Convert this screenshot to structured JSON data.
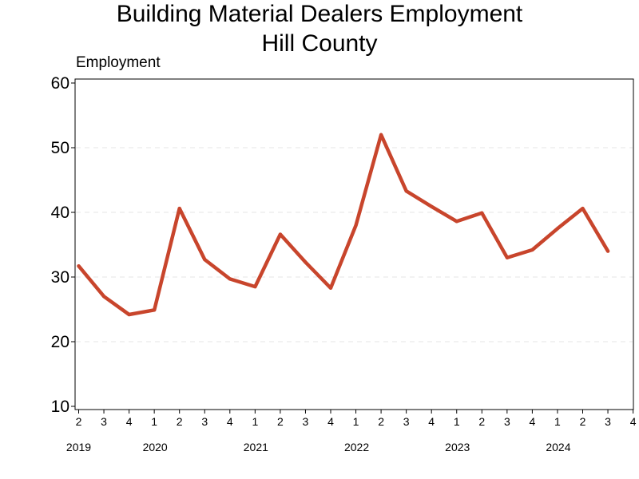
{
  "chart_data": {
    "type": "line",
    "title": "Building Material Dealers Employment",
    "subtitle": "Hill County",
    "ylabel": "Employment",
    "ylim": [
      10,
      60
    ],
    "yticks": [
      10,
      20,
      30,
      40,
      50,
      60
    ],
    "quarter_ticks": [
      "2",
      "3",
      "4",
      "1",
      "2",
      "3",
      "4",
      "1",
      "2",
      "3",
      "4",
      "1",
      "2",
      "3",
      "4",
      "1",
      "2",
      "3",
      "4",
      "1",
      "2",
      "3",
      "4"
    ],
    "year_labels": [
      {
        "label": "2019",
        "quarter_index": 0
      },
      {
        "label": "2020",
        "quarter_index": 3
      },
      {
        "label": "2021",
        "quarter_index": 7
      },
      {
        "label": "2022",
        "quarter_index": 11
      },
      {
        "label": "2023",
        "quarter_index": 15
      },
      {
        "label": "2024",
        "quarter_index": 19
      }
    ],
    "series": [
      {
        "color": "#c8452c",
        "x": [
          "2019Q2",
          "2019Q3",
          "2019Q4",
          "2020Q1",
          "2020Q2",
          "2020Q3",
          "2020Q4",
          "2021Q1",
          "2021Q2",
          "2021Q3",
          "2021Q4",
          "2022Q1",
          "2022Q2",
          "2022Q3",
          "2022Q4",
          "2023Q1",
          "2023Q2",
          "2023Q3",
          "2023Q4",
          "2024Q1",
          "2024Q2",
          "2024Q3"
        ],
        "values": [
          31.7,
          27.0,
          24.2,
          24.9,
          40.6,
          32.7,
          29.7,
          28.5,
          36.6,
          32.3,
          28.3,
          38.0,
          52.0,
          43.3,
          40.9,
          38.6,
          39.9,
          33.0,
          34.2,
          37.5,
          40.6,
          34.0
        ]
      }
    ],
    "grid": true,
    "grid_style": "dashed"
  }
}
